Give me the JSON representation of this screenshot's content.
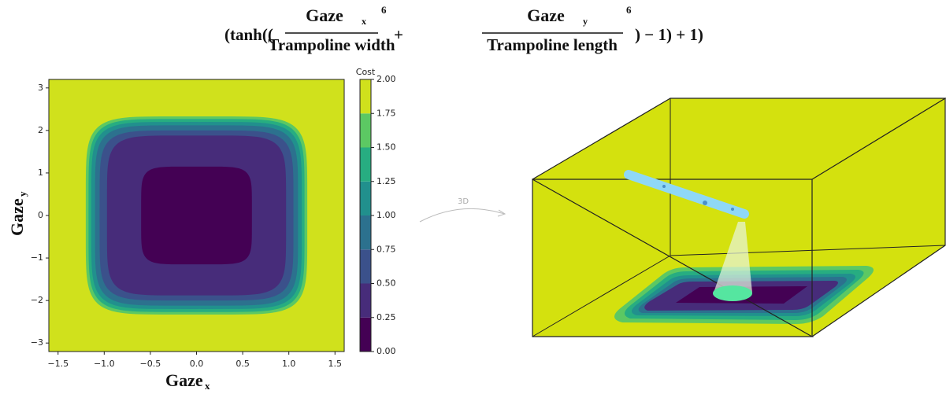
{
  "chart_data": {
    "type": "contour",
    "title": {
      "open": "(tanh((",
      "num1": "Gaze",
      "sub1": "x",
      "den1": "Trampoline width",
      "exp1": 6,
      "plus": "+",
      "num2": "Gaze",
      "sub2": "y",
      "den2": "Trampoline length",
      "exp2": 6,
      "close": ") − 1) + 1)"
    },
    "x_label": {
      "text": "Gaze",
      "sub": "x"
    },
    "y_label": {
      "text": "Gaze",
      "sub": "y"
    },
    "xlim": [
      -1.6,
      1.6
    ],
    "xticks": [
      {
        "value": -1.5,
        "label": "−1.5"
      },
      {
        "value": -1,
        "label": "−1.0"
      },
      {
        "value": -0.5,
        "label": "−0.5"
      },
      {
        "value": 0,
        "label": "0.0"
      },
      0.5,
      {
        "value": 1,
        "label": "1.0"
      },
      1.5
    ],
    "ylim": [
      -3.2,
      3.2
    ],
    "yticks": [
      {
        "value": -3,
        "label": "−3"
      },
      {
        "value": -2,
        "label": "−2"
      },
      {
        "value": -1,
        "label": "−1"
      },
      0,
      1,
      2,
      3
    ],
    "colorbar": {
      "label": "Cost",
      "ticks": [
        {
          "value": 0,
          "label": "0.00"
        },
        {
          "value": 0.25,
          "label": "0.25"
        },
        {
          "value": 0.5,
          "label": "0.50"
        },
        {
          "value": 0.75,
          "label": "0.75"
        },
        {
          "value": 1,
          "label": "1.00"
        },
        {
          "value": 1.25,
          "label": "1.25"
        },
        {
          "value": 1.5,
          "label": "1.50"
        },
        {
          "value": 1.75,
          "label": "1.75"
        },
        {
          "value": 2,
          "label": "2.00"
        }
      ],
      "colors": [
        "#440154",
        "#472c7a",
        "#3b518b",
        "#2c718e",
        "#21908d",
        "#27ad81",
        "#5cc863",
        "#d0e11c"
      ]
    },
    "contours": [
      {
        "x": 0.6,
        "y": 1.15
      },
      {
        "x": 0.97,
        "y": 1.88
      },
      {
        "x": 1.05,
        "y": 2.0
      },
      {
        "x": 1.1,
        "y": 2.12
      },
      {
        "x": 1.14,
        "y": 2.2
      },
      {
        "x": 1.17,
        "y": 2.27
      },
      {
        "x": 1.2,
        "y": 2.33
      }
    ],
    "annotation": "3D"
  }
}
